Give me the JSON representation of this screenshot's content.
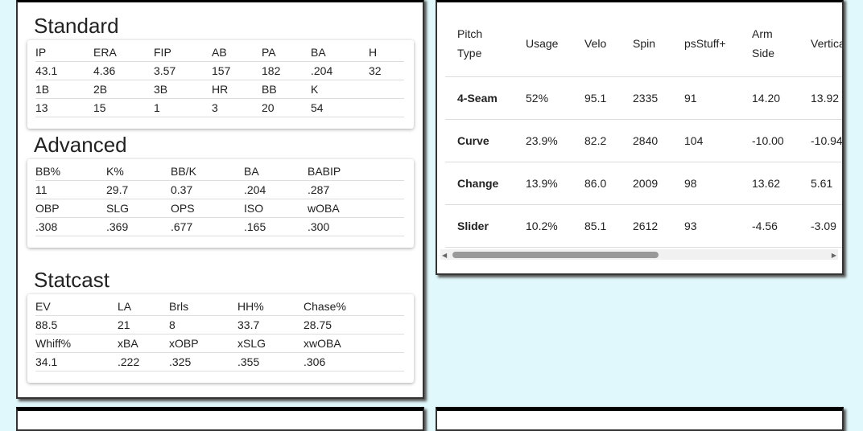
{
  "standard": {
    "title": "Standard",
    "rows": [
      [
        "IP",
        "ERA",
        "FIP",
        "AB",
        "PA",
        "BA",
        "H"
      ],
      [
        "43.1",
        "4.36",
        "3.57",
        "157",
        "182",
        ".204",
        "32"
      ],
      [
        "1B",
        "2B",
        "3B",
        "HR",
        "BB",
        "K"
      ],
      [
        "13",
        "15",
        "1",
        "3",
        "20",
        "54"
      ]
    ]
  },
  "advanced": {
    "title": "Advanced",
    "rows": [
      [
        "BB%",
        "K%",
        "BB/K",
        "BA",
        "BABIP"
      ],
      [
        "11",
        "29.7",
        "0.37",
        ".204",
        ".287"
      ],
      [
        "OBP",
        "SLG",
        "OPS",
        "ISO",
        "wOBA"
      ],
      [
        ".308",
        ".369",
        ".677",
        ".165",
        ".300"
      ]
    ]
  },
  "statcast": {
    "title": "Statcast",
    "rows": [
      [
        "EV",
        "LA",
        "Brls",
        "HH%",
        "Chase%"
      ],
      [
        "88.5",
        "21",
        "8",
        "33.7",
        "28.75"
      ],
      [
        "Whiff%",
        "xBA",
        "xOBP",
        "xSLG",
        "xwOBA"
      ],
      [
        "34.1",
        ".222",
        ".325",
        ".355",
        ".306"
      ]
    ]
  },
  "pitches": {
    "header": [
      "Pitch Type",
      "Usage",
      "Velo",
      "Spin",
      "psStuff+",
      "Arm Side",
      "Vertical"
    ],
    "rows": [
      [
        "4-Seam",
        "52%",
        "95.1",
        "2335",
        "91",
        "14.20",
        "13.92"
      ],
      [
        "Curve",
        "23.9%",
        "82.2",
        "2840",
        "104",
        "-10.00",
        "-10.94"
      ],
      [
        "Change",
        "13.9%",
        "86.0",
        "2009",
        "98",
        "13.62",
        "5.61"
      ],
      [
        "Slider",
        "10.2%",
        "85.1",
        "2612",
        "93",
        "-4.56",
        "-3.09"
      ]
    ]
  }
}
